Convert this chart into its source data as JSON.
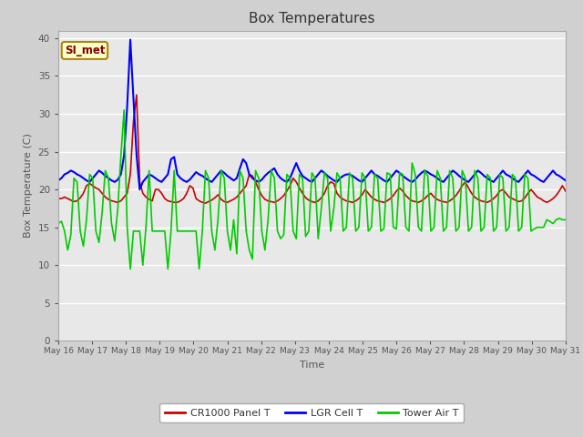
{
  "title": "Box Temperatures",
  "xlabel": "Time",
  "ylabel": "Box Temperature (C)",
  "ylim": [
    0,
    41
  ],
  "yticks": [
    0,
    5,
    10,
    15,
    20,
    25,
    30,
    35,
    40
  ],
  "fig_bg_color": "#d0d0d0",
  "plot_bg_color": "#e8e8e8",
  "annotation_text": "SI_met",
  "annotation_bg": "#ffffcc",
  "annotation_border": "#aa8800",
  "series": {
    "cr1000": {
      "label": "CR1000 Panel T",
      "color": "#cc0000",
      "lw": 1.2
    },
    "lgr": {
      "label": "LGR Cell T",
      "color": "#0000ff",
      "lw": 1.5
    },
    "tower": {
      "label": "Tower Air T",
      "color": "#00cc00",
      "lw": 1.2
    }
  },
  "cr1000_data": [
    18.8,
    18.8,
    19.0,
    18.8,
    18.6,
    18.4,
    18.5,
    18.9,
    19.5,
    20.5,
    20.8,
    20.5,
    20.2,
    20.0,
    19.5,
    19.0,
    18.7,
    18.5,
    18.4,
    18.3,
    18.5,
    19.0,
    19.5,
    22.0,
    29.0,
    32.5,
    21.0,
    19.5,
    19.0,
    18.7,
    18.5,
    20.0,
    20.0,
    19.5,
    18.8,
    18.5,
    18.4,
    18.3,
    18.3,
    18.5,
    18.8,
    19.5,
    20.5,
    20.2,
    18.8,
    18.5,
    18.3,
    18.2,
    18.4,
    18.6,
    18.9,
    19.3,
    18.7,
    18.4,
    18.3,
    18.5,
    18.7,
    19.0,
    19.5,
    20.0,
    20.5,
    22.0,
    21.8,
    21.0,
    20.0,
    19.2,
    18.7,
    18.5,
    18.4,
    18.3,
    18.5,
    18.8,
    19.2,
    19.8,
    20.5,
    21.5,
    21.0,
    20.2,
    19.5,
    18.9,
    18.6,
    18.4,
    18.3,
    18.5,
    18.9,
    19.5,
    20.5,
    21.0,
    20.8,
    19.5,
    19.0,
    18.7,
    18.5,
    18.4,
    18.3,
    18.5,
    18.8,
    19.3,
    20.0,
    19.5,
    19.0,
    18.7,
    18.5,
    18.4,
    18.3,
    18.5,
    18.8,
    19.2,
    19.8,
    20.2,
    19.8,
    19.2,
    18.8,
    18.5,
    18.4,
    18.3,
    18.5,
    18.8,
    19.2,
    19.5,
    19.0,
    18.7,
    18.5,
    18.4,
    18.3,
    18.5,
    18.8,
    19.2,
    19.8,
    20.5,
    21.0,
    20.2,
    19.5,
    19.0,
    18.7,
    18.5,
    18.4,
    18.3,
    18.5,
    18.8,
    19.2,
    19.8,
    20.0,
    19.5,
    19.0,
    18.8,
    18.6,
    18.4,
    18.5,
    18.9,
    19.5,
    20.0,
    19.5,
    19.0,
    18.8,
    18.5,
    18.3,
    18.5,
    18.8,
    19.2,
    19.8,
    20.5,
    19.8
  ],
  "lgr_data": [
    21.2,
    21.5,
    22.0,
    22.2,
    22.5,
    22.3,
    22.0,
    21.8,
    21.5,
    21.2,
    21.0,
    21.5,
    22.0,
    22.5,
    22.2,
    21.8,
    21.5,
    21.2,
    21.0,
    21.3,
    22.0,
    24.5,
    31.0,
    39.8,
    32.0,
    24.5,
    20.0,
    21.0,
    21.5,
    22.0,
    21.8,
    21.5,
    21.2,
    21.0,
    21.5,
    22.0,
    24.0,
    24.3,
    22.0,
    21.5,
    21.2,
    21.0,
    21.3,
    21.8,
    22.3,
    22.0,
    21.8,
    21.5,
    21.2,
    21.0,
    21.5,
    22.0,
    22.5,
    22.2,
    21.8,
    21.5,
    21.2,
    21.5,
    22.8,
    24.0,
    23.5,
    22.0,
    21.5,
    21.2,
    21.0,
    21.3,
    21.8,
    22.2,
    22.5,
    22.8,
    22.0,
    21.5,
    21.2,
    21.0,
    21.5,
    22.5,
    23.5,
    22.5,
    21.8,
    21.5,
    21.2,
    21.0,
    21.5,
    22.0,
    22.5,
    22.2,
    21.8,
    21.5,
    21.2,
    21.0,
    21.5,
    21.8,
    22.0,
    22.0,
    21.8,
    21.5,
    21.2,
    21.0,
    21.5,
    22.0,
    22.5,
    22.0,
    21.8,
    21.5,
    21.2,
    21.0,
    21.5,
    22.0,
    22.5,
    22.2,
    21.8,
    21.5,
    21.2,
    21.0,
    21.3,
    21.8,
    22.2,
    22.5,
    22.3,
    22.0,
    21.8,
    21.5,
    21.2,
    21.0,
    21.5,
    22.0,
    22.5,
    22.2,
    21.8,
    21.5,
    21.2,
    21.0,
    21.5,
    22.0,
    22.5,
    22.2,
    21.8,
    21.5,
    21.2,
    21.0,
    21.5,
    22.0,
    22.5,
    22.0,
    21.8,
    21.5,
    21.2,
    21.0,
    21.5,
    22.0,
    22.5,
    22.0,
    21.8,
    21.5,
    21.2,
    21.0,
    21.5,
    22.0,
    22.5,
    22.0,
    21.8,
    21.5,
    21.2
  ],
  "tower_data": [
    15.5,
    15.8,
    14.5,
    12.0,
    14.0,
    21.5,
    21.0,
    14.5,
    12.5,
    16.0,
    22.0,
    21.5,
    14.5,
    13.0,
    17.0,
    22.5,
    21.5,
    15.5,
    13.2,
    17.5,
    24.5,
    30.5,
    15.0,
    9.5,
    14.5,
    14.5,
    14.5,
    10.0,
    15.0,
    22.5,
    14.5,
    14.5,
    14.5,
    14.5,
    14.5,
    9.5,
    14.5,
    22.5,
    14.5,
    14.5,
    14.5,
    14.5,
    14.5,
    14.5,
    14.5,
    9.5,
    14.5,
    22.5,
    21.5,
    14.5,
    12.0,
    16.0,
    22.5,
    21.5,
    14.5,
    12.0,
    16.0,
    11.5,
    22.5,
    21.5,
    14.5,
    12.0,
    10.8,
    22.5,
    21.5,
    14.5,
    12.0,
    16.0,
    22.5,
    21.5,
    14.5,
    13.5,
    14.0,
    22.0,
    21.5,
    14.5,
    13.5,
    22.0,
    21.5,
    13.8,
    14.5,
    22.2,
    21.5,
    13.5,
    17.5,
    22.2,
    21.5,
    14.5,
    17.5,
    22.2,
    21.5,
    14.5,
    15.0,
    22.2,
    21.5,
    14.5,
    15.0,
    22.2,
    21.5,
    14.5,
    15.0,
    22.0,
    21.5,
    14.5,
    14.8,
    22.2,
    22.0,
    15.0,
    14.8,
    22.2,
    22.0,
    15.0,
    14.5,
    23.5,
    22.0,
    15.0,
    14.5,
    22.5,
    21.8,
    14.5,
    15.0,
    22.5,
    21.5,
    14.5,
    15.0,
    22.5,
    21.5,
    14.5,
    15.0,
    22.5,
    21.5,
    14.5,
    15.0,
    22.5,
    21.5,
    14.5,
    15.0,
    22.0,
    21.5,
    14.5,
    15.0,
    22.0,
    21.5,
    14.5,
    15.0,
    22.0,
    21.5,
    14.5,
    15.0,
    22.0,
    21.5,
    14.5,
    14.8,
    15.0,
    15.0,
    15.0,
    16.0,
    15.8,
    15.5,
    16.0,
    16.2,
    16.0,
    16.0
  ]
}
